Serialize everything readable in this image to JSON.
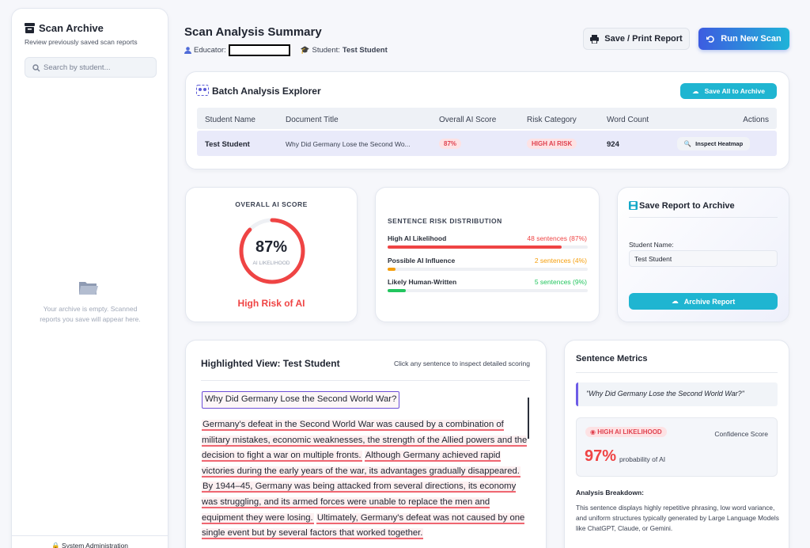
{
  "sidebar": {
    "title": "Scan Archive",
    "subtitle": "Review previously saved scan reports",
    "search_placeholder": "Search by student...",
    "empty_message": "Your archive is empty. Scanned reports you save will appear here.",
    "footer": "System Administration"
  },
  "header": {
    "title": "Scan Analysis Summary",
    "educator_label": "Educator:",
    "student_label": "Student:",
    "student_name": "Test Student",
    "buttons": [
      "Save / Print Report",
      "Run New Scan"
    ]
  },
  "batch": {
    "title": "Batch Analysis Explorer",
    "save_all": "Save All to Archive",
    "columns": [
      "Student Name",
      "Document Title",
      "Overall AI Score",
      "Risk Category",
      "Word Count",
      "Actions"
    ],
    "rows": [
      [
        "Test Student",
        "Why Did Germany Lose the Second Wo...",
        "87%",
        "HIGH AI RISK",
        924,
        "Inspect Heatmap"
      ]
    ]
  },
  "score_card": {
    "heading": "OVERALL AI SCORE",
    "score": {
      "value": 87,
      "label": "87%"
    },
    "score_sub": "AI LIKELIHOOD",
    "verdict": "High Risk of AI",
    "color": "#ef4444"
  },
  "distribution": {
    "title": "SENTENCE RISK DISTRIBUTION",
    "items": [
      {
        "label": "High AI Likelihood",
        "value": 87,
        "value_label": "48 sentences (87%)",
        "color": "#ef4444"
      },
      {
        "label": "Possible AI Influence",
        "value": 4,
        "value_label": "2 sentences (4%)",
        "color": "#f59e0b"
      },
      {
        "label": "Likely Human-Written",
        "value": 9,
        "value_label": "5 sentences (9%)",
        "color": "#22c55e"
      }
    ]
  },
  "save_report": {
    "title": "Save Report to Archive",
    "field_label": "Student Name:",
    "field_value": "Test Student",
    "button": "Archive Report"
  },
  "highlighted": {
    "title": "Highlighted View: Test Student",
    "hint": "Click any sentence to inspect detailed scoring",
    "heading_sentence": "Why Did Germany Lose the Second World War?",
    "sentences": [
      "Germany's defeat in the Second World War was caused by a combination of military mistakes, economic weaknesses, the strength of the Allied powers and the decision to fight a war on multiple fronts.",
      "Although Germany achieved rapid victories during the early years of the war, its advantages gradually disappeared.",
      "By 1944–45, Germany was being attacked from several directions, its economy was struggling, and its armed forces were unable to replace the men and equipment they were losing.",
      "Ultimately, Germany's defeat was not caused by one single event but by several factors that worked together."
    ]
  },
  "metrics": {
    "title": "Sentence Metrics",
    "quote": "\"Why Did Germany Lose the Second World War?\"",
    "badge": "HIGH AI LIKELIHOOD",
    "confidence_label": "Confidence Score",
    "percent": "97%",
    "percent_sub": "probability of AI",
    "breakdown_title": "Analysis Breakdown:",
    "breakdown_text": "This sentence displays highly repetitive phrasing, low word variance, and uniform structures typically generated by Large Language Models like ChatGPT, Claude, or Gemini."
  }
}
